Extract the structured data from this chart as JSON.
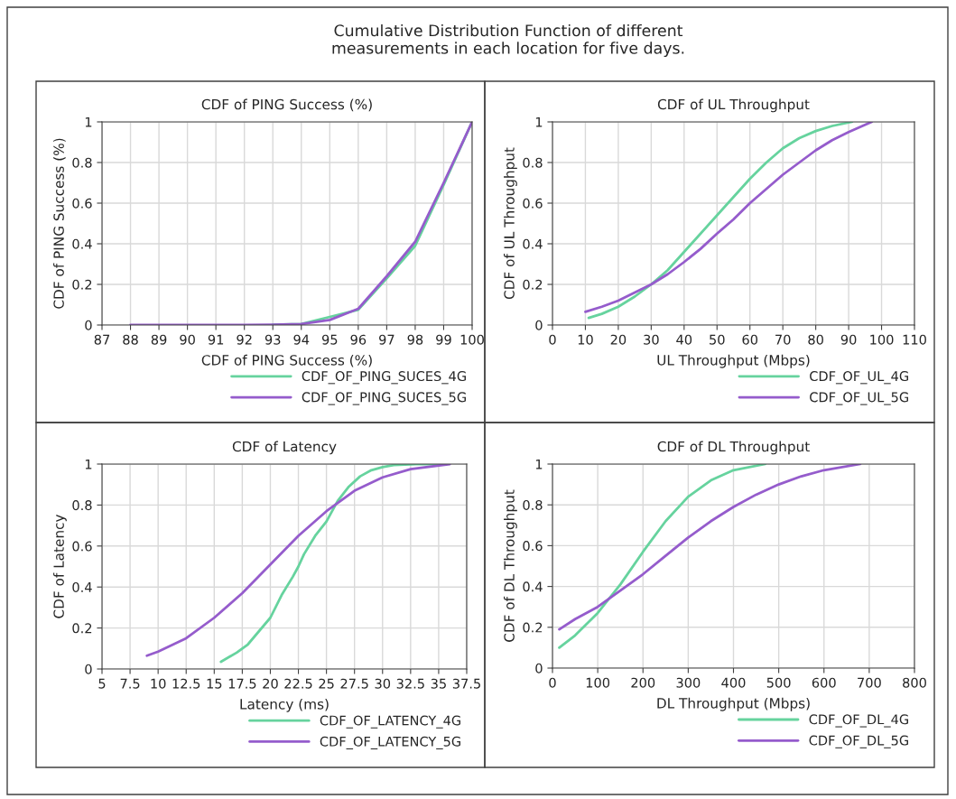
{
  "chart_data": [
    {
      "type": "line",
      "title": "CDF of PING Success (%)",
      "xlabel": "CDF of PING Success (%)",
      "ylabel": "CDF of PING Success (%)",
      "annotations": [
        "Cumulative Distribution Function of different\nmeasurements in each location for five days."
      ],
      "xlim": [
        87,
        100
      ],
      "xticks": [
        87,
        88,
        89,
        90,
        91,
        92,
        93,
        94,
        95,
        96,
        97,
        98,
        99,
        100
      ],
      "ylim": [
        0,
        1
      ],
      "yticks": [
        0,
        0.2,
        0.4,
        0.6,
        0.8,
        1
      ],
      "grid": true,
      "legend": "bottom right",
      "series": [
        {
          "name": "CDF_OF_PING_SUCES_4G",
          "color": "#66d39e",
          "x": [
            93,
            94,
            95,
            96,
            97,
            98,
            99,
            100
          ],
          "values": [
            0.002,
            0.005,
            0.04,
            0.075,
            0.23,
            0.39,
            0.69,
            1
          ]
        },
        {
          "name": "CDF_OF_PING_SUCES_5G",
          "color": "#955ccc",
          "x": [
            88,
            89,
            90,
            91,
            92,
            93,
            94,
            95,
            96,
            97,
            98,
            99,
            100
          ],
          "values": [
            0,
            0,
            0,
            0,
            0,
            0.002,
            0.005,
            0.025,
            0.08,
            0.24,
            0.41,
            0.7,
            1
          ]
        }
      ]
    },
    {
      "type": "line",
      "title": "CDF of UL Throughput",
      "xlabel": "UL Throughput (Mbps)",
      "ylabel": "CDF of UL Throughput",
      "xlim": [
        0,
        110
      ],
      "xticks": [
        0,
        10,
        20,
        30,
        40,
        50,
        60,
        70,
        80,
        90,
        100,
        110
      ],
      "ylim": [
        0,
        1
      ],
      "yticks": [
        0,
        0.2,
        0.4,
        0.6,
        0.8,
        1
      ],
      "grid": true,
      "legend": "bottom right",
      "series": [
        {
          "name": "CDF_OF_UL_4G",
          "color": "#66d39e",
          "x": [
            11,
            15,
            20,
            25,
            30,
            35,
            40,
            45,
            50,
            55,
            60,
            65,
            70,
            75,
            80,
            85,
            91
          ],
          "values": [
            0.035,
            0.055,
            0.09,
            0.14,
            0.2,
            0.27,
            0.36,
            0.45,
            0.54,
            0.63,
            0.72,
            0.8,
            0.87,
            0.92,
            0.955,
            0.98,
            1
          ]
        },
        {
          "name": "CDF_OF_UL_5G",
          "color": "#955ccc",
          "x": [
            10,
            15,
            20,
            25,
            30,
            35,
            40,
            45,
            50,
            55,
            60,
            65,
            70,
            75,
            80,
            85,
            90,
            97
          ],
          "values": [
            0.065,
            0.09,
            0.12,
            0.16,
            0.2,
            0.25,
            0.31,
            0.375,
            0.45,
            0.52,
            0.6,
            0.67,
            0.74,
            0.8,
            0.86,
            0.91,
            0.95,
            1
          ]
        }
      ]
    },
    {
      "type": "line",
      "title": "CDF of Latency",
      "xlabel": "Latency (ms)",
      "ylabel": "CDF of Latency",
      "xlim": [
        5,
        37.5
      ],
      "xticks": [
        5,
        7.5,
        10,
        12.5,
        15,
        17.5,
        20,
        22.5,
        25,
        27.5,
        30,
        32.5,
        35,
        37.5
      ],
      "ylim": [
        0,
        1
      ],
      "yticks": [
        0,
        0.2,
        0.4,
        0.6,
        0.8,
        1
      ],
      "grid": true,
      "legend": "bottom right",
      "series": [
        {
          "name": "CDF_OF_LATENCY_4G",
          "color": "#66d39e",
          "x": [
            15.6,
            17,
            18,
            20,
            21,
            22,
            22.5,
            23,
            24,
            25,
            26,
            27,
            28,
            29,
            30,
            31,
            33,
            35
          ],
          "values": [
            0.035,
            0.08,
            0.12,
            0.25,
            0.36,
            0.45,
            0.5,
            0.56,
            0.65,
            0.72,
            0.82,
            0.89,
            0.94,
            0.97,
            0.985,
            0.995,
            1,
            1
          ]
        },
        {
          "name": "CDF_OF_LATENCY_5G",
          "color": "#955ccc",
          "x": [
            9,
            10,
            12.5,
            15,
            17.5,
            20,
            22.5,
            25,
            27.5,
            30,
            32.5,
            36
          ],
          "values": [
            0.065,
            0.085,
            0.15,
            0.25,
            0.37,
            0.51,
            0.65,
            0.77,
            0.87,
            0.935,
            0.975,
            1
          ]
        }
      ]
    },
    {
      "type": "line",
      "title": "CDF of DL Throughput",
      "xlabel": "DL Throughput (Mbps)",
      "ylabel": "CDF of DL Throughput",
      "xlim": [
        0,
        800
      ],
      "xticks": [
        0,
        100,
        200,
        300,
        400,
        500,
        600,
        700,
        800
      ],
      "ylim": [
        0,
        1
      ],
      "yticks": [
        0,
        0.2,
        0.4,
        0.6,
        0.8,
        1
      ],
      "grid": true,
      "legend": "bottom right",
      "series": [
        {
          "name": "CDF_OF_DL_4G",
          "color": "#66d39e",
          "x": [
            15,
            50,
            100,
            150,
            200,
            250,
            300,
            350,
            400,
            470
          ],
          "values": [
            0.1,
            0.16,
            0.27,
            0.41,
            0.57,
            0.72,
            0.84,
            0.92,
            0.97,
            1
          ]
        },
        {
          "name": "CDF_OF_DL_5G",
          "color": "#955ccc",
          "x": [
            15,
            50,
            100,
            150,
            200,
            250,
            300,
            350,
            400,
            450,
            500,
            550,
            600,
            680
          ],
          "values": [
            0.19,
            0.24,
            0.3,
            0.38,
            0.46,
            0.55,
            0.64,
            0.72,
            0.79,
            0.85,
            0.9,
            0.94,
            0.97,
            1
          ]
        }
      ]
    }
  ]
}
